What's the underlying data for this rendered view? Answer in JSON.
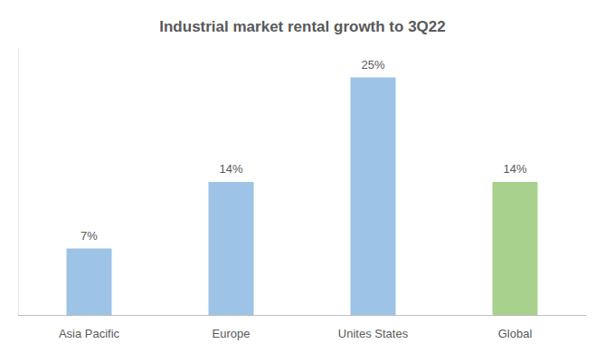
{
  "chart_data": {
    "type": "bar",
    "title": "Industrial market rental growth to 3Q22",
    "categories": [
      "Asia Pacific",
      "Europe",
      "Unites States",
      "Global"
    ],
    "values": [
      7,
      14,
      25,
      14
    ],
    "value_labels": [
      "7%",
      "14%",
      "25%",
      "14%"
    ],
    "colors": [
      "#9dc3e6",
      "#9dc3e6",
      "#9dc3e6",
      "#a9d18e"
    ],
    "ylim": [
      0,
      28
    ],
    "data_labels": true,
    "grid": false,
    "tick_labels": "x"
  }
}
